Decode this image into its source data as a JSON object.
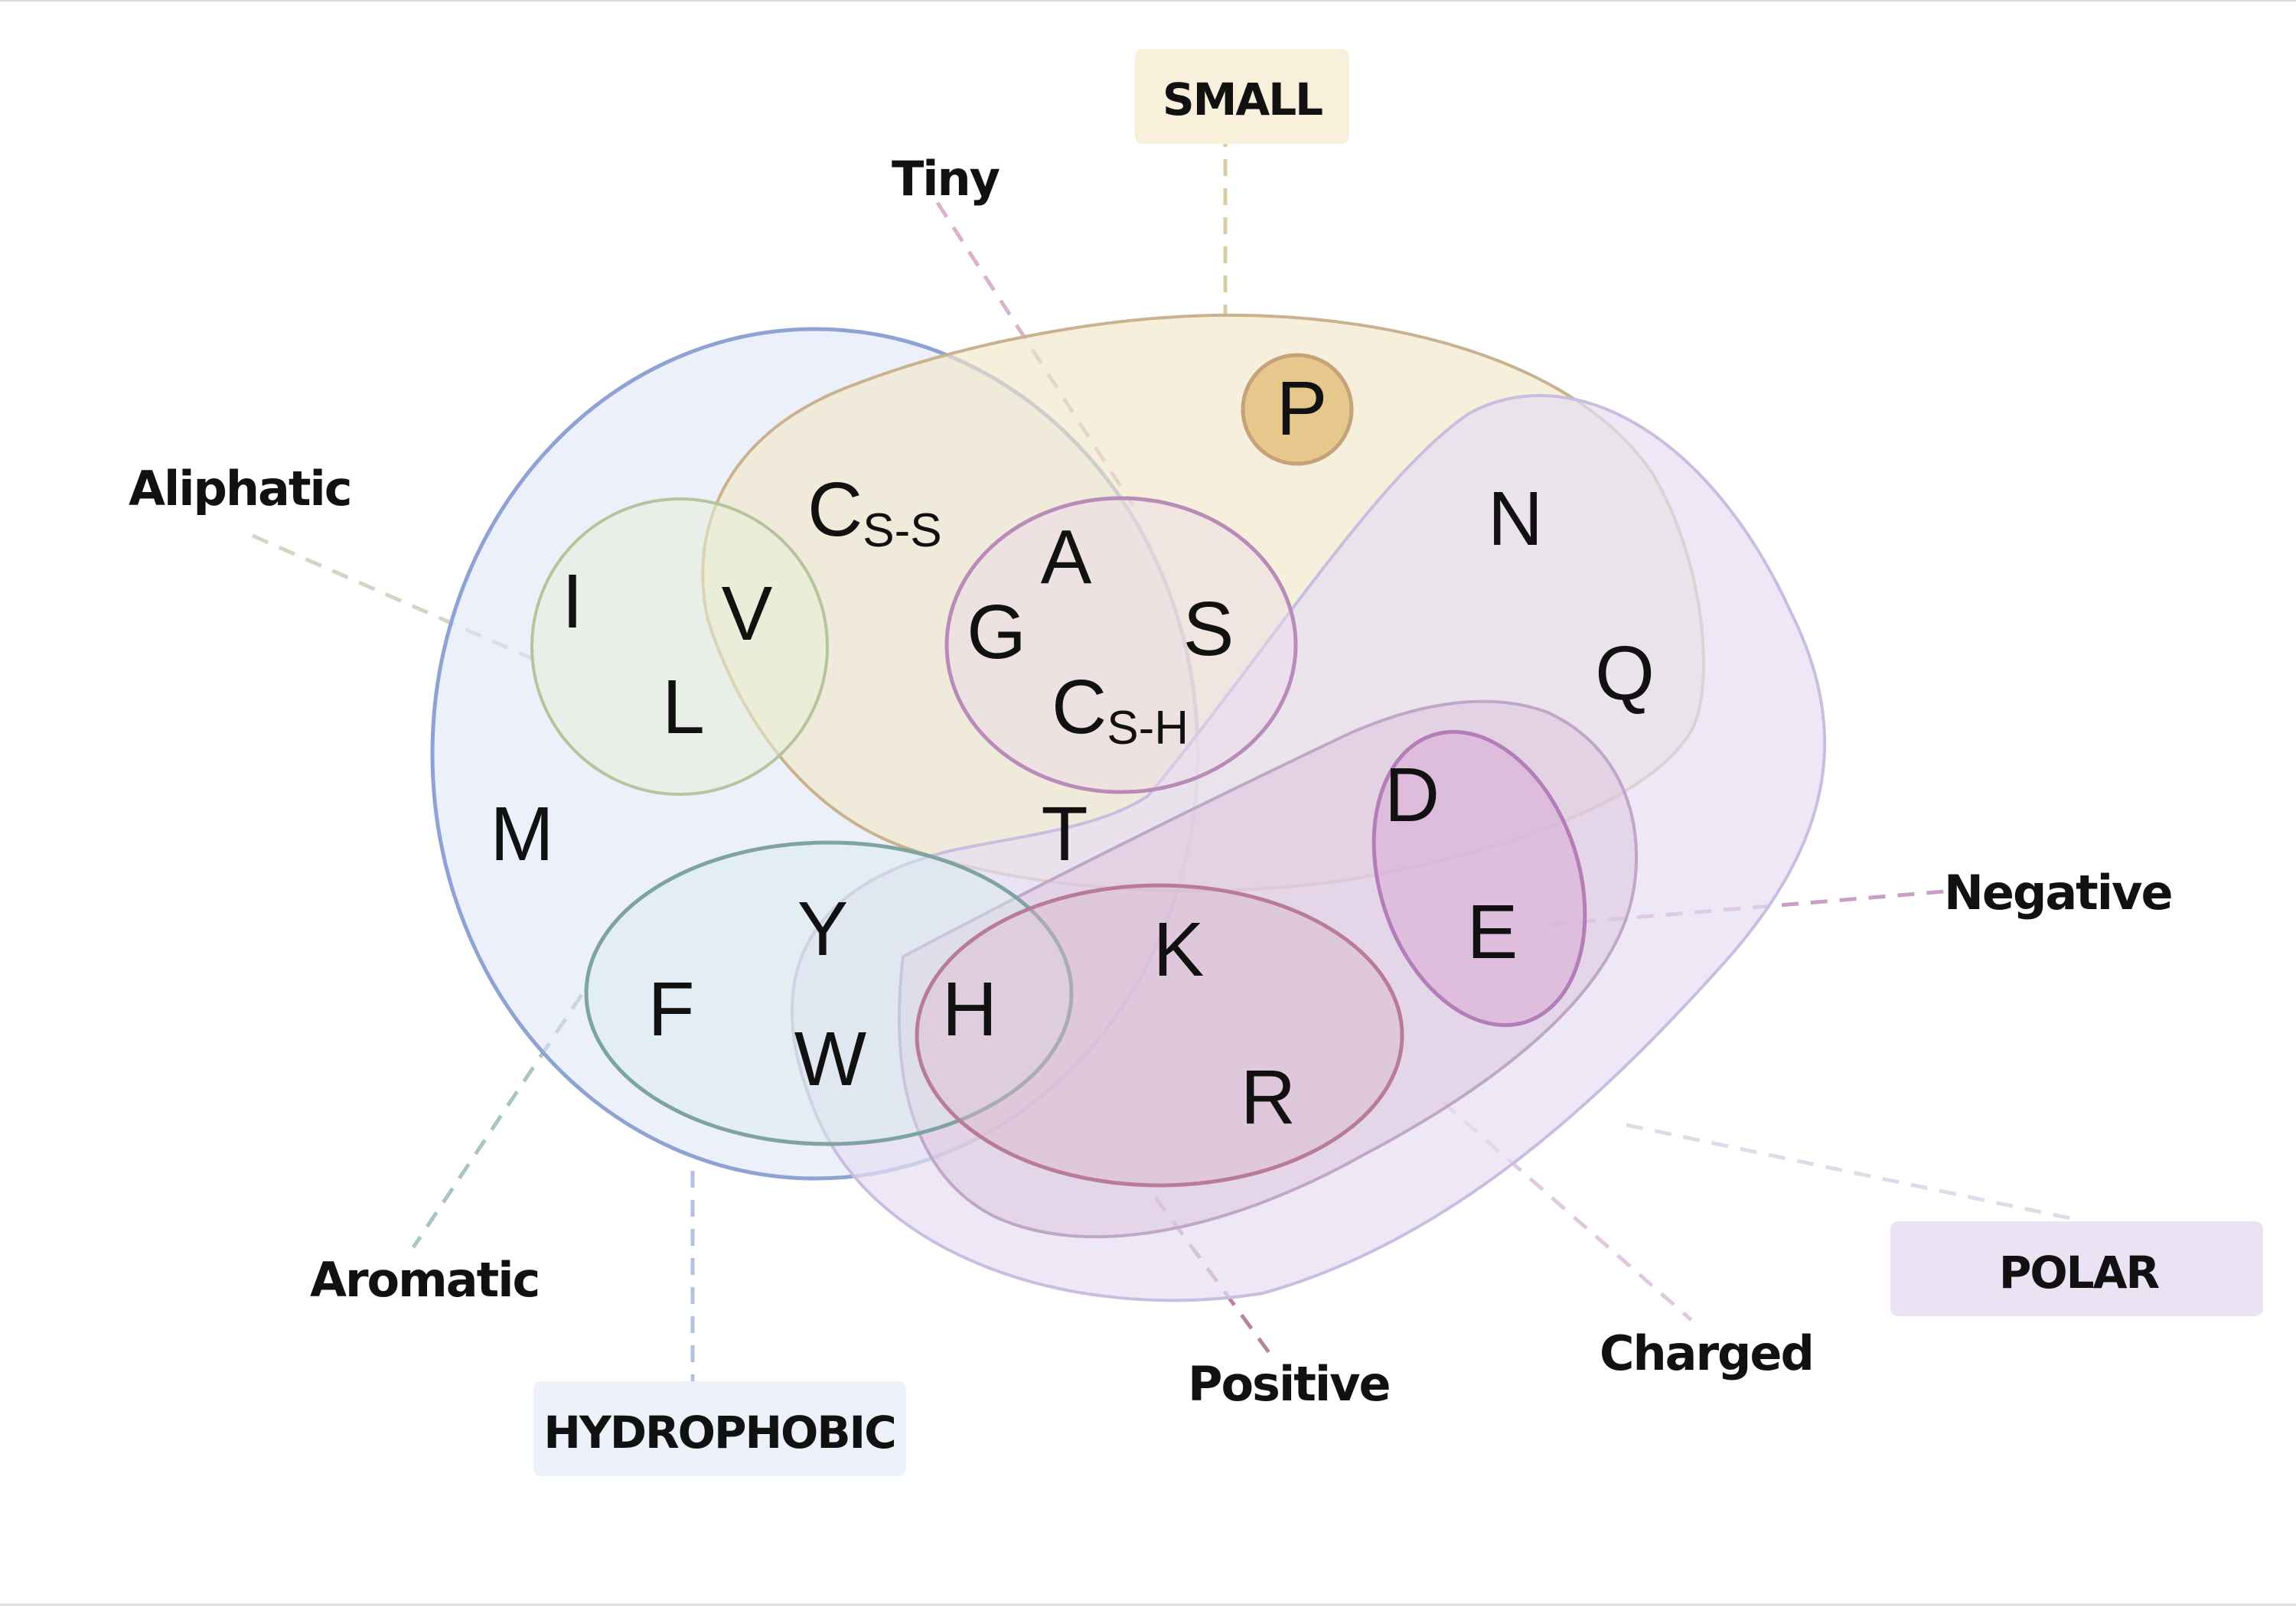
{
  "categories": {
    "hydrophobic": {
      "label": "HYDROPHOBIC",
      "color": "#8ea3d4",
      "fill": "#dde6f6"
    },
    "small": {
      "label": "SMALL",
      "color": "#c9b28d",
      "fill": "#f1e6c8"
    },
    "polar": {
      "label": "POLAR",
      "color": "#c9bde0",
      "fill": "#e7def2"
    },
    "tiny": {
      "label": "Tiny",
      "color": "#b98bb9",
      "fill": "#ecd9ea"
    },
    "aliphatic": {
      "label": "Aliphatic",
      "color": "#b6c49b",
      "fill": "#e8efd9"
    },
    "aromatic": {
      "label": "Aromatic",
      "color": "#7fa3a0",
      "fill": "#d9ecee"
    },
    "charged": {
      "label": "Charged",
      "color": "#c0a6c8",
      "fill": "#ddc4dc"
    },
    "positive": {
      "label": "Positive",
      "color": "#b87b98",
      "fill": "#dbb8cf"
    },
    "negative": {
      "label": "Negative",
      "color": "#b37eb7",
      "fill": "#dbb2d9"
    }
  },
  "residues": {
    "I": "I",
    "V": "V",
    "L": "L",
    "M": "M",
    "C_ss": {
      "main": "C",
      "sub": "S-S"
    },
    "C_sh": {
      "main": "C",
      "sub": "S-H"
    },
    "P": "P",
    "A": "A",
    "G": "G",
    "S": "S",
    "N": "N",
    "Q": "Q",
    "T": "T",
    "D": "D",
    "E": "E",
    "Y": "Y",
    "F": "F",
    "W": "W",
    "H": "H",
    "K": "K",
    "R": "R"
  }
}
